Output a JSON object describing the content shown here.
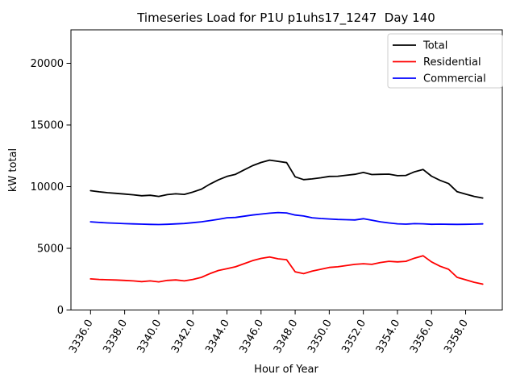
{
  "chart_data": {
    "type": "line",
    "title": "Timeseries Load for P1U p1uhs17_1247  Day 140",
    "xlabel": "Hour of Year",
    "ylabel": "kW total",
    "grid": false,
    "xlim": [
      3334.85,
      3360.15
    ],
    "ylim": [
      0,
      22712
    ],
    "x_ticks": [
      3336,
      3338,
      3340,
      3342,
      3344,
      3346,
      3348,
      3350,
      3352,
      3354,
      3356,
      3358
    ],
    "x_tick_labels": [
      "3336.0",
      "3338.0",
      "3340.0",
      "3342.0",
      "3344.0",
      "3346.0",
      "3348.0",
      "3350.0",
      "3352.0",
      "3354.0",
      "3356.0",
      "3358.0"
    ],
    "x_tick_rotation": 60,
    "y_ticks": [
      0,
      5000,
      10000,
      15000,
      20000
    ],
    "y_tick_labels": [
      "0",
      "5000",
      "10000",
      "15000",
      "20000"
    ],
    "legend": {
      "position": "upper right",
      "border_color": "#cccccc",
      "background": "#ffffff",
      "entries": [
        "Total",
        "Residential",
        "Commercial"
      ]
    },
    "x": [
      3336.0,
      3336.5,
      3337.0,
      3337.5,
      3338.0,
      3338.5,
      3339.0,
      3339.5,
      3340.0,
      3340.5,
      3341.0,
      3341.5,
      3342.0,
      3342.5,
      3343.0,
      3343.5,
      3344.0,
      3344.5,
      3345.0,
      3345.5,
      3346.0,
      3346.5,
      3347.0,
      3347.5,
      3348.0,
      3348.5,
      3349.0,
      3349.5,
      3350.0,
      3350.5,
      3351.0,
      3351.5,
      3352.0,
      3352.5,
      3353.0,
      3353.5,
      3354.0,
      3354.5,
      3355.0,
      3355.5,
      3356.0,
      3356.5,
      3357.0,
      3357.5,
      3358.0,
      3358.5,
      3359.0
    ],
    "series": [
      {
        "name": "Total",
        "color": "#000000",
        "values": [
          9670,
          9580,
          9510,
          9460,
          9400,
          9340,
          9260,
          9300,
          9210,
          9350,
          9420,
          9370,
          9560,
          9800,
          10200,
          10550,
          10830,
          11000,
          11350,
          11700,
          11960,
          12150,
          12050,
          11950,
          10800,
          10570,
          10630,
          10720,
          10830,
          10840,
          10920,
          11000,
          11150,
          10980,
          11000,
          11010,
          10890,
          10910,
          11200,
          11390,
          10850,
          10510,
          10250,
          9590,
          9400,
          9210,
          9080
        ]
      },
      {
        "name": "Residential",
        "color": "#ff0000",
        "values": [
          2520,
          2480,
          2450,
          2430,
          2400,
          2360,
          2300,
          2360,
          2280,
          2400,
          2440,
          2360,
          2480,
          2650,
          2950,
          3200,
          3350,
          3500,
          3750,
          4000,
          4180,
          4300,
          4150,
          4080,
          3100,
          2950,
          3150,
          3300,
          3450,
          3500,
          3600,
          3700,
          3750,
          3700,
          3850,
          3950,
          3900,
          3950,
          4200,
          4400,
          3900,
          3550,
          3300,
          2650,
          2450,
          2250,
          2100
        ]
      },
      {
        "name": "Commercial",
        "color": "#0000ff",
        "values": [
          7150,
          7100,
          7060,
          7030,
          7000,
          6980,
          6960,
          6940,
          6930,
          6950,
          6980,
          7010,
          7080,
          7150,
          7250,
          7350,
          7480,
          7500,
          7600,
          7700,
          7780,
          7850,
          7900,
          7870,
          7700,
          7620,
          7480,
          7420,
          7380,
          7340,
          7320,
          7300,
          7400,
          7280,
          7150,
          7060,
          6990,
          6960,
          7000,
          6990,
          6950,
          6960,
          6950,
          6940,
          6950,
          6960,
          6980
        ]
      }
    ]
  }
}
